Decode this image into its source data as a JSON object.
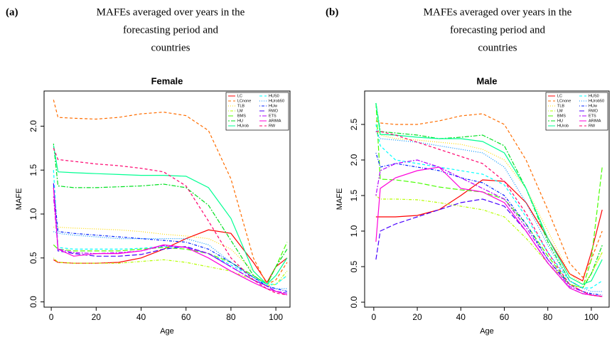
{
  "chart_data": [
    {
      "type": "line",
      "panel_label": "(a)",
      "caption": [
        "MAFEs averaged over years in the",
        "forecasting period and",
        "countries"
      ],
      "title": "Female",
      "xlabel": "Age",
      "ylabel": "MAFE",
      "xlim": [
        -3.2,
        106.3
      ],
      "ylim": [
        -0.06,
        2.4
      ],
      "xticks": [
        0,
        20,
        40,
        60,
        80,
        100
      ],
      "yticks": [
        {
          "value": 0,
          "label": "0.0"
        },
        {
          "value": 0.5,
          "label": "0.5"
        },
        {
          "value": 1,
          "label": "1.0"
        },
        {
          "value": 1.5,
          "label": "1.5"
        },
        {
          "value": 2,
          "label": "2.0"
        }
      ],
      "x": [
        1,
        3,
        10,
        20,
        30,
        40,
        50,
        60,
        70,
        80,
        90,
        96,
        100,
        105
      ],
      "series": [
        {
          "name": "LC",
          "color": "#ff0000",
          "linestyle": "solid",
          "values": [
            0.48,
            0.45,
            0.44,
            0.44,
            0.45,
            0.5,
            0.6,
            0.72,
            0.82,
            0.78,
            0.45,
            0.22,
            0.4,
            0.5
          ]
        },
        {
          "name": "LCnone",
          "color": "#ff6d00",
          "linestyle": "dashed",
          "values": [
            2.3,
            2.1,
            2.09,
            2.08,
            2.1,
            2.14,
            2.16,
            2.12,
            1.95,
            1.4,
            0.5,
            0.2,
            0.25,
            0.45
          ]
        },
        {
          "name": "TLB",
          "color": "#ffdb00",
          "linestyle": "dotted",
          "values": [
            0.85,
            0.85,
            0.84,
            0.83,
            0.82,
            0.8,
            0.77,
            0.75,
            0.72,
            0.6,
            0.35,
            0.2,
            0.2,
            0.3
          ]
        },
        {
          "name": "LM",
          "color": "#b6ff00",
          "linestyle": "dotdash",
          "values": [
            0.5,
            0.45,
            0.44,
            0.44,
            0.44,
            0.46,
            0.48,
            0.45,
            0.4,
            0.35,
            0.25,
            0.18,
            0.2,
            0.35
          ]
        },
        {
          "name": "BMS",
          "color": "#49ff00",
          "linestyle": "longdash",
          "values": [
            0.65,
            0.6,
            0.58,
            0.58,
            0.58,
            0.6,
            0.62,
            0.6,
            0.55,
            0.45,
            0.3,
            0.2,
            0.4,
            0.68
          ]
        },
        {
          "name": "HU",
          "color": "#00e020",
          "linestyle": "twodash",
          "values": [
            1.8,
            1.32,
            1.3,
            1.3,
            1.31,
            1.32,
            1.34,
            1.3,
            1.1,
            0.7,
            0.3,
            0.2,
            0.4,
            0.6
          ]
        },
        {
          "name": "HUrob",
          "color": "#00ff92",
          "linestyle": "solid",
          "values": [
            1.78,
            1.48,
            1.47,
            1.46,
            1.45,
            1.44,
            1.44,
            1.43,
            1.3,
            0.95,
            0.35,
            0.2,
            0.3,
            0.5
          ]
        },
        {
          "name": "HUS0",
          "color": "#00ffff",
          "linestyle": "dashed",
          "values": [
            1.5,
            0.62,
            0.6,
            0.6,
            0.6,
            0.61,
            0.63,
            0.62,
            0.55,
            0.42,
            0.28,
            0.2,
            0.2,
            0.3
          ]
        },
        {
          "name": "HUrob50",
          "color": "#0092ff",
          "linestyle": "dotted",
          "values": [
            0.8,
            0.78,
            0.76,
            0.74,
            0.72,
            0.72,
            0.72,
            0.72,
            0.65,
            0.45,
            0.28,
            0.18,
            0.15,
            0.15
          ]
        },
        {
          "name": "HUw",
          "color": "#0024ff",
          "linestyle": "dotdash",
          "values": [
            1.3,
            0.8,
            0.78,
            0.76,
            0.74,
            0.72,
            0.7,
            0.68,
            0.6,
            0.45,
            0.28,
            0.18,
            0.15,
            0.12
          ]
        },
        {
          "name": "RWD",
          "color": "#4900ff",
          "linestyle": "longdash",
          "values": [
            1.35,
            0.58,
            0.55,
            0.52,
            0.52,
            0.54,
            0.6,
            0.63,
            0.55,
            0.4,
            0.25,
            0.18,
            0.12,
            0.1
          ]
        },
        {
          "name": "ETS",
          "color": "#b600ff",
          "linestyle": "twodash",
          "values": [
            1.2,
            0.6,
            0.56,
            0.55,
            0.56,
            0.58,
            0.64,
            0.62,
            0.55,
            0.4,
            0.25,
            0.18,
            0.12,
            0.1
          ]
        },
        {
          "name": "ARIMA",
          "color": "#ff00db",
          "linestyle": "solid",
          "values": [
            1.3,
            0.6,
            0.52,
            0.55,
            0.55,
            0.58,
            0.65,
            0.62,
            0.5,
            0.35,
            0.22,
            0.15,
            0.12,
            0.08
          ]
        },
        {
          "name": "RW",
          "color": "#ff006d",
          "linestyle": "dashed",
          "values": [
            1.75,
            1.62,
            1.6,
            1.57,
            1.55,
            1.52,
            1.48,
            1.32,
            0.92,
            0.5,
            0.25,
            0.15,
            0.1,
            0.08
          ]
        }
      ]
    },
    {
      "type": "line",
      "panel_label": "(b)",
      "caption": [
        "MAFEs averaged over years in the",
        "forecasting period and",
        "countries"
      ],
      "title": "Male",
      "xlabel": "Age",
      "ylabel": "MAFE",
      "xlim": [
        -4.2,
        108.2
      ],
      "ylim": [
        -0.07,
        2.97
      ],
      "xticks": [
        0,
        20,
        40,
        60,
        80,
        100
      ],
      "yticks": [
        {
          "value": 0,
          "label": "0.0"
        },
        {
          "value": 0.5,
          "label": "0.5"
        },
        {
          "value": 1,
          "label": "1.0"
        },
        {
          "value": 1.5,
          "label": "1.5"
        },
        {
          "value": 2,
          "label": "2.0"
        },
        {
          "value": 2.5,
          "label": "2.5"
        }
      ],
      "x": [
        1,
        3,
        10,
        20,
        30,
        40,
        50,
        60,
        70,
        80,
        90,
        96,
        100,
        105
      ],
      "series": [
        {
          "name": "LC",
          "color": "#ff0000",
          "linestyle": "solid",
          "values": [
            1.2,
            1.2,
            1.2,
            1.22,
            1.3,
            1.5,
            1.72,
            1.7,
            1.4,
            0.9,
            0.4,
            0.3,
            0.7,
            1.3
          ]
        },
        {
          "name": "LCnone",
          "color": "#ff6d00",
          "linestyle": "dashed",
          "values": [
            2.55,
            2.52,
            2.5,
            2.5,
            2.55,
            2.62,
            2.65,
            2.5,
            2.0,
            1.3,
            0.55,
            0.35,
            0.6,
            1.0
          ]
        },
        {
          "name": "TLB",
          "color": "#ffdb00",
          "linestyle": "dotted",
          "values": [
            2.5,
            2.35,
            2.3,
            2.28,
            2.25,
            2.22,
            2.15,
            2.0,
            1.6,
            1.0,
            0.4,
            0.25,
            0.4,
            0.7
          ]
        },
        {
          "name": "LM",
          "color": "#b6ff00",
          "linestyle": "dotdash",
          "values": [
            1.5,
            1.45,
            1.45,
            1.44,
            1.4,
            1.35,
            1.3,
            1.2,
            0.9,
            0.55,
            0.25,
            0.2,
            0.4,
            0.7
          ]
        },
        {
          "name": "BMS",
          "color": "#49ff00",
          "linestyle": "longdash",
          "values": [
            2.8,
            1.73,
            1.72,
            1.68,
            1.62,
            1.58,
            1.55,
            1.45,
            1.1,
            0.65,
            0.25,
            0.2,
            0.6,
            1.9
          ]
        },
        {
          "name": "HU",
          "color": "#00e020",
          "linestyle": "twodash",
          "values": [
            2.8,
            2.4,
            2.38,
            2.35,
            2.3,
            2.32,
            2.35,
            2.2,
            1.6,
            0.85,
            0.3,
            0.2,
            0.4,
            0.8
          ]
        },
        {
          "name": "HUrob",
          "color": "#00ff92",
          "linestyle": "solid",
          "values": [
            2.8,
            2.36,
            2.35,
            2.32,
            2.3,
            2.3,
            2.26,
            2.1,
            1.6,
            0.9,
            0.35,
            0.25,
            0.3,
            0.6
          ]
        },
        {
          "name": "HUS0",
          "color": "#00ffff",
          "linestyle": "dashed",
          "values": [
            2.5,
            2.2,
            2.0,
            1.95,
            1.9,
            1.85,
            1.8,
            1.65,
            1.2,
            0.7,
            0.3,
            0.2,
            0.2,
            0.3
          ]
        },
        {
          "name": "HUrob50",
          "color": "#0092ff",
          "linestyle": "dotted",
          "values": [
            2.4,
            2.3,
            2.28,
            2.25,
            2.2,
            2.15,
            2.1,
            1.9,
            1.4,
            0.8,
            0.3,
            0.2,
            0.15,
            0.15
          ]
        },
        {
          "name": "HUw",
          "color": "#0024ff",
          "linestyle": "dotdash",
          "values": [
            2.1,
            1.9,
            1.95,
            1.9,
            1.85,
            1.75,
            1.68,
            1.5,
            1.1,
            0.6,
            0.25,
            0.15,
            0.12,
            0.1
          ]
        },
        {
          "name": "RWD",
          "color": "#4900ff",
          "linestyle": "longdash",
          "values": [
            0.6,
            1.0,
            1.1,
            1.2,
            1.3,
            1.4,
            1.45,
            1.35,
            1.0,
            0.55,
            0.2,
            0.12,
            0.1,
            0.08
          ]
        },
        {
          "name": "ETS",
          "color": "#b600ff",
          "linestyle": "twodash",
          "values": [
            1.5,
            1.85,
            1.95,
            2.0,
            1.9,
            1.75,
            1.6,
            1.45,
            1.05,
            0.6,
            0.22,
            0.15,
            0.1,
            0.08
          ]
        },
        {
          "name": "ARIMA",
          "color": "#ff00db",
          "linestyle": "solid",
          "values": [
            0.85,
            1.6,
            1.75,
            1.85,
            1.9,
            1.6,
            1.55,
            1.4,
            1.0,
            0.55,
            0.2,
            0.12,
            0.1,
            0.08
          ]
        },
        {
          "name": "RW",
          "color": "#ff006d",
          "linestyle": "dashed",
          "values": [
            2.4,
            2.4,
            2.35,
            2.25,
            2.15,
            2.05,
            1.95,
            1.7,
            1.25,
            0.7,
            0.25,
            0.15,
            0.1,
            0.08
          ]
        }
      ]
    }
  ]
}
